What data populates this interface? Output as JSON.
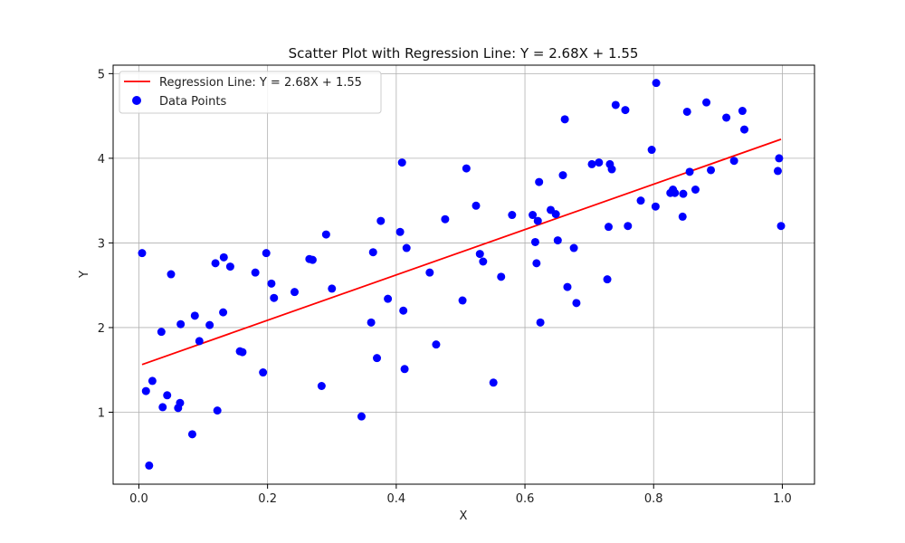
{
  "chart_data": {
    "type": "scatter",
    "title": "Scatter Plot with Regression Line: Y = 2.68X + 1.55",
    "xlabel": "X",
    "ylabel": "Y",
    "xlim": [
      -0.04,
      1.05
    ],
    "ylim": [
      0.15,
      5.1
    ],
    "xticks": [
      "0.0",
      "0.2",
      "0.4",
      "0.6",
      "0.8",
      "1.0"
    ],
    "yticks": [
      "1",
      "2",
      "3",
      "4",
      "5"
    ],
    "grid": true,
    "legend": {
      "placement": "top-left",
      "entries": [
        "Regression Line: Y = 2.68X + 1.55",
        "Data Points"
      ]
    },
    "colors": {
      "points": "#0000ff",
      "regression": "#ff0000",
      "grid": "#b0b0b0"
    },
    "regression": {
      "name": "Regression Line: Y = 2.68X + 1.55",
      "slope": 2.68,
      "intercept": 1.55,
      "x_range": [
        0.005,
        0.998
      ]
    },
    "series": [
      {
        "name": "Data Points",
        "x": [
          0.005,
          0.011,
          0.016,
          0.021,
          0.035,
          0.037,
          0.044,
          0.05,
          0.061,
          0.064,
          0.065,
          0.083,
          0.087,
          0.094,
          0.11,
          0.119,
          0.122,
          0.131,
          0.132,
          0.142,
          0.157,
          0.161,
          0.181,
          0.193,
          0.198,
          0.206,
          0.21,
          0.242,
          0.265,
          0.27,
          0.284,
          0.291,
          0.3,
          0.346,
          0.361,
          0.364,
          0.37,
          0.376,
          0.387,
          0.406,
          0.409,
          0.411,
          0.413,
          0.416,
          0.452,
          0.462,
          0.476,
          0.503,
          0.509,
          0.524,
          0.53,
          0.535,
          0.551,
          0.563,
          0.58,
          0.612,
          0.616,
          0.618,
          0.62,
          0.622,
          0.624,
          0.64,
          0.648,
          0.651,
          0.659,
          0.662,
          0.666,
          0.676,
          0.68,
          0.704,
          0.715,
          0.728,
          0.73,
          0.732,
          0.735,
          0.741,
          0.756,
          0.76,
          0.78,
          0.797,
          0.803,
          0.804,
          0.826,
          0.83,
          0.833,
          0.845,
          0.846,
          0.852,
          0.856,
          0.865,
          0.882,
          0.889,
          0.913,
          0.925,
          0.938,
          0.941,
          0.993,
          0.995,
          0.998
        ],
        "y": [
          2.88,
          1.25,
          0.37,
          1.37,
          1.95,
          1.06,
          1.2,
          2.63,
          1.05,
          1.11,
          2.04,
          0.74,
          2.14,
          1.84,
          2.03,
          2.76,
          1.02,
          2.18,
          2.83,
          2.72,
          1.72,
          1.71,
          2.65,
          1.47,
          2.88,
          2.52,
          2.35,
          2.42,
          2.81,
          2.8,
          1.31,
          3.1,
          2.46,
          0.95,
          2.06,
          2.89,
          1.64,
          3.26,
          2.34,
          3.13,
          3.95,
          2.2,
          1.51,
          2.94,
          2.65,
          1.8,
          3.28,
          2.32,
          3.88,
          3.44,
          2.87,
          2.78,
          1.35,
          2.6,
          3.33,
          3.33,
          3.01,
          2.76,
          3.26,
          3.72,
          2.06,
          3.39,
          3.34,
          3.03,
          3.8,
          4.46,
          2.48,
          2.94,
          2.29,
          3.93,
          3.95,
          2.57,
          3.19,
          3.93,
          3.87,
          4.63,
          4.57,
          3.2,
          3.5,
          4.1,
          3.43,
          4.89,
          3.59,
          3.63,
          3.59,
          3.31,
          3.58,
          4.55,
          3.84,
          3.63,
          4.66,
          3.86,
          4.48,
          3.97,
          4.56,
          4.34,
          3.85,
          4.0,
          3.2
        ]
      }
    ]
  }
}
